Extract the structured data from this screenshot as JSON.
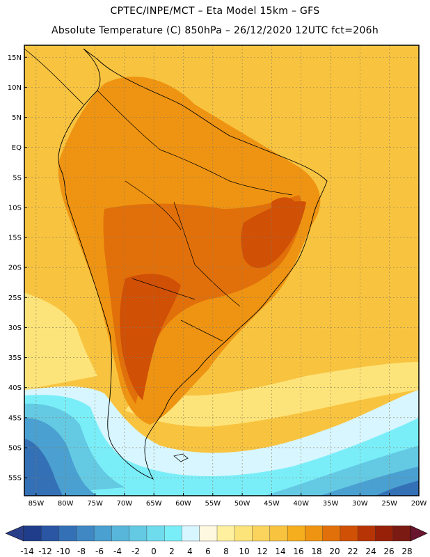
{
  "header": {
    "line1": "CPTEC/INPE/MCT –  Eta Model 15km – GFS",
    "line2": "Absolute Temperature (C) 850hPa – 26/12/2020 12UTC fct=206h"
  },
  "map": {
    "lon_range": [
      -87,
      -20
    ],
    "lat_range": [
      -58,
      17
    ],
    "lat_labels": [
      "15N",
      "10N",
      "5N",
      "EQ",
      "5S",
      "10S",
      "15S",
      "20S",
      "25S",
      "30S",
      "35S",
      "40S",
      "45S",
      "50S",
      "55S"
    ],
    "lon_labels": [
      "85W",
      "80W",
      "75W",
      "70W",
      "65W",
      "60W",
      "55W",
      "50W",
      "45W",
      "40W",
      "35W",
      "30W",
      "25W",
      "20W"
    ]
  },
  "colorbar": {
    "labels": [
      "-14",
      "-12",
      "-10",
      "-8",
      "-6",
      "-4",
      "-2",
      "0",
      "2",
      "4",
      "6",
      "8",
      "10",
      "12",
      "14",
      "16",
      "18",
      "20",
      "22",
      "24",
      "26",
      "28"
    ],
    "colors": [
      "#1f3d8a",
      "#2a56a3",
      "#3470b6",
      "#3f88c4",
      "#4aa0d0",
      "#57b6da",
      "#64cae4",
      "#6fdcee",
      "#7aeef8",
      "#d8f6ff",
      "#fff8e0",
      "#fff0a0",
      "#fde47a",
      "#fbd45e",
      "#f8c440",
      "#f4ae1e",
      "#ef9412",
      "#e2700a",
      "#d05006",
      "#b63406",
      "#962008",
      "#7a1a12"
    ],
    "under_color": "#2a3f8a",
    "over_color": "#6a1530"
  },
  "fill_colors": {
    "ocean_pale": "#fde47a",
    "ocean_warm": "#f8c440",
    "land_warm": "#f4ae1e",
    "land_hot": "#ef9412",
    "land_hotter": "#e2700a",
    "land_hottest": "#d05006",
    "cold_1": "#d8f6ff",
    "cold_2": "#7aeef8",
    "cold_3": "#64cae4",
    "cold_4": "#4aa0d0",
    "cold_5": "#3470b6"
  }
}
